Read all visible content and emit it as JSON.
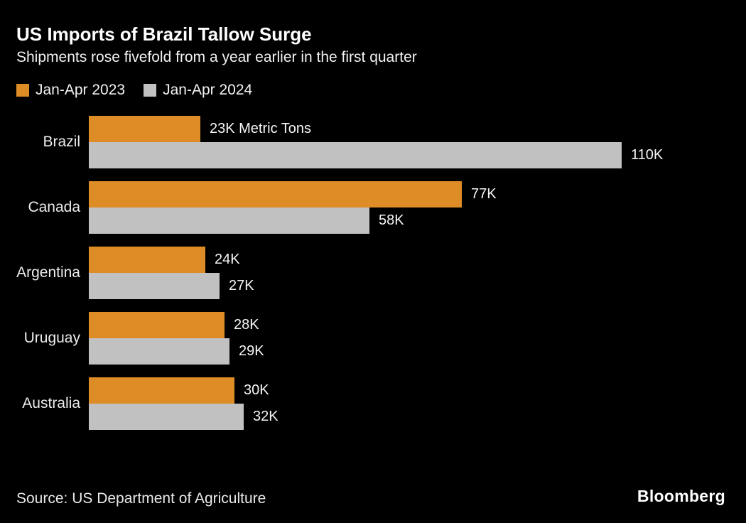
{
  "colors": {
    "background": "#000000",
    "bar_2023": "#DE8C26",
    "bar_2024": "#C1C1C1",
    "text": "#FFFFFF"
  },
  "footer": {
    "source": "Source: US Department of Agriculture",
    "brand": "Bloomberg"
  },
  "chart_data": {
    "type": "bar",
    "orientation": "horizontal",
    "title": "US Imports of Brazil Tallow Surge",
    "subtitle": "Shipments rose fivefold from a year earlier in the first quarter",
    "unit": "Metric Tons (thousands)",
    "categories": [
      "Brazil",
      "Canada",
      "Argentina",
      "Uruguay",
      "Australia"
    ],
    "series": [
      {
        "name": "Jan-Apr 2023",
        "color": "#DE8C26",
        "values": [
          23,
          77,
          24,
          28,
          30
        ],
        "labels": [
          "23K Metric Tons",
          "77K",
          "24K",
          "28K",
          "30K"
        ]
      },
      {
        "name": "Jan-Apr 2024",
        "color": "#C1C1C1",
        "values": [
          110,
          58,
          27,
          29,
          32
        ],
        "labels": [
          "110K",
          "58K",
          "27K",
          "29K",
          "32K"
        ]
      }
    ],
    "xlim": [
      0,
      110
    ],
    "grid": false,
    "legend_position": "top-left"
  }
}
